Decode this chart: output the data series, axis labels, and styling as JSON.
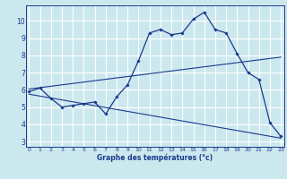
{
  "title": "",
  "xlabel": "Graphe des températures (°c)",
  "ylabel": "",
  "bg_color": "#cce8ef",
  "grid_color": "#ffffff",
  "line_color": "#1a3a8c",
  "x_ticks": [
    0,
    1,
    2,
    3,
    4,
    5,
    6,
    7,
    8,
    9,
    10,
    11,
    12,
    13,
    14,
    15,
    16,
    17,
    18,
    19,
    20,
    21,
    22,
    23
  ],
  "y_ticks": [
    3,
    4,
    5,
    6,
    7,
    8,
    9,
    10
  ],
  "ylim": [
    2.7,
    10.9
  ],
  "xlim": [
    -0.3,
    23.3
  ],
  "temp_curve": [
    [
      0,
      5.9
    ],
    [
      1,
      6.1
    ],
    [
      2,
      5.5
    ],
    [
      3,
      5.0
    ],
    [
      4,
      5.1
    ],
    [
      5,
      5.2
    ],
    [
      6,
      5.3
    ],
    [
      7,
      4.6
    ],
    [
      8,
      5.6
    ],
    [
      9,
      6.3
    ],
    [
      10,
      7.7
    ],
    [
      11,
      9.3
    ],
    [
      12,
      9.5
    ],
    [
      13,
      9.2
    ],
    [
      14,
      9.3
    ],
    [
      15,
      10.1
    ],
    [
      16,
      10.5
    ],
    [
      17,
      9.5
    ],
    [
      18,
      9.3
    ],
    [
      19,
      8.1
    ],
    [
      20,
      7.0
    ],
    [
      21,
      6.6
    ],
    [
      22,
      4.1
    ],
    [
      23,
      3.3
    ]
  ],
  "upper_line": [
    [
      0,
      6.05
    ],
    [
      23,
      7.9
    ]
  ],
  "lower_line": [
    [
      0,
      5.75
    ],
    [
      23,
      3.2
    ]
  ]
}
